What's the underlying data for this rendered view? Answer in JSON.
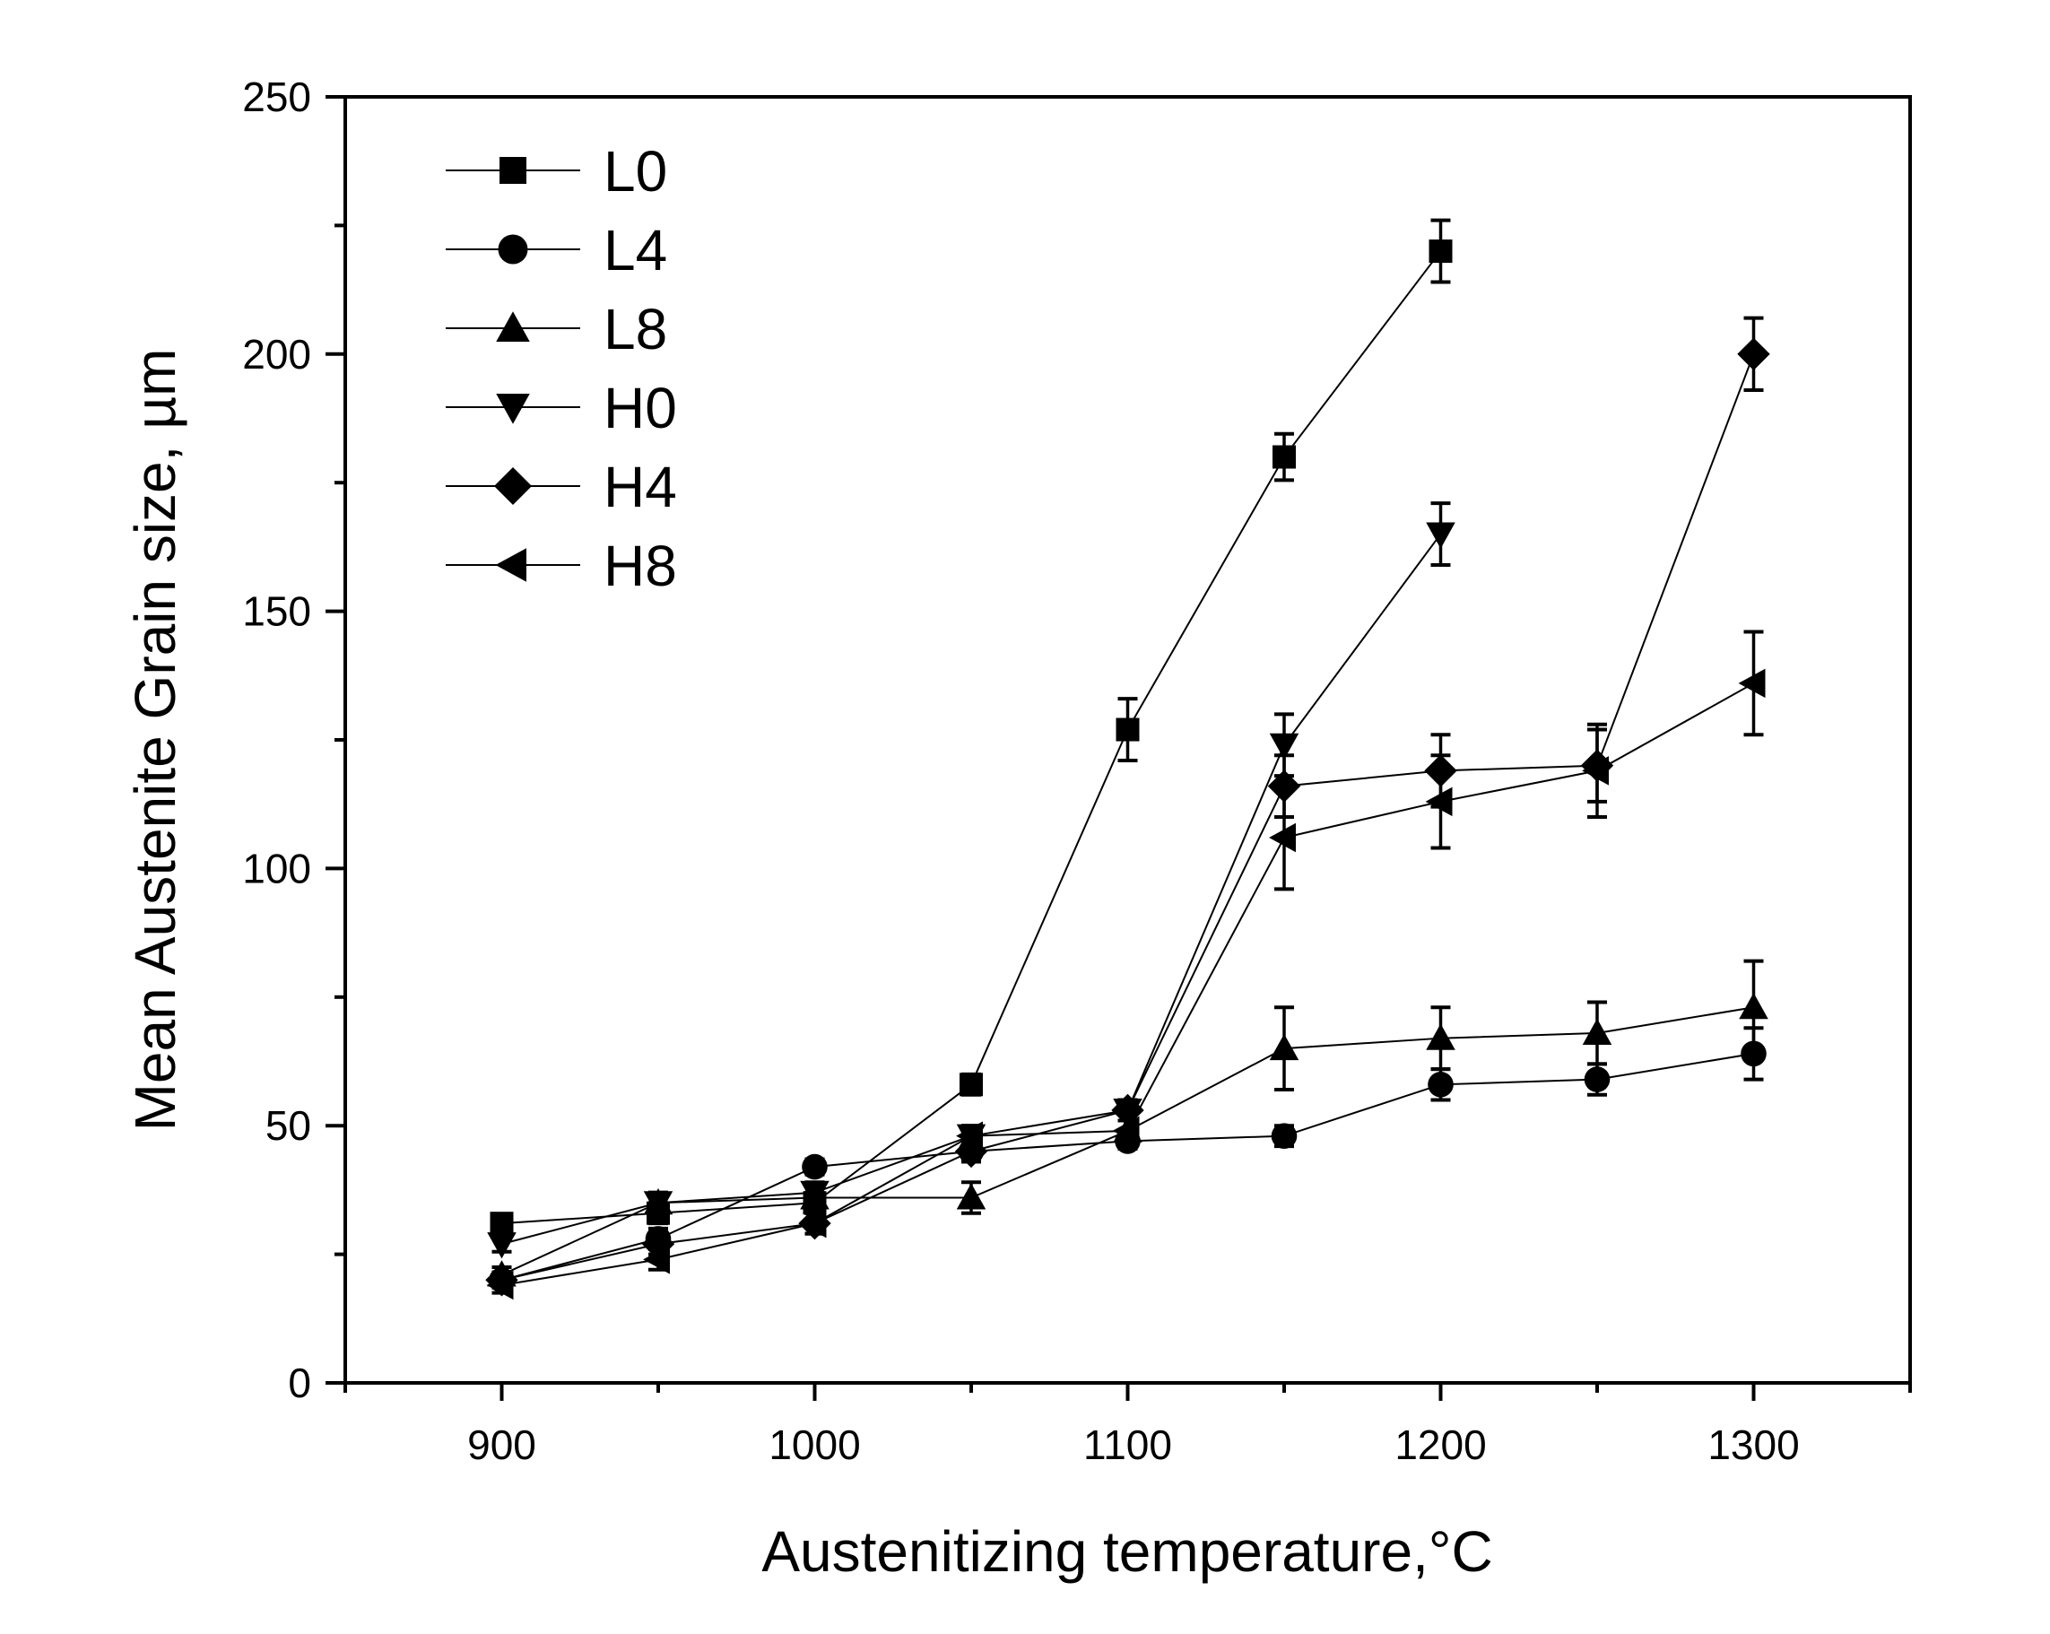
{
  "chart_data": {
    "type": "line",
    "title": "",
    "xlabel": "Austenitizing temperature,°C",
    "ylabel": "Mean Austenite Grain size, µm",
    "xlim": [
      850,
      1350
    ],
    "ylim": [
      0,
      250
    ],
    "x_ticks": [
      900,
      1000,
      1100,
      1200,
      1300
    ],
    "y_ticks": [
      0,
      50,
      100,
      150,
      200,
      250
    ],
    "x_tick_labels": [
      "900",
      "1000",
      "1100",
      "1200",
      "1300"
    ],
    "y_tick_labels": [
      "0",
      "50",
      "100",
      "150",
      "200",
      "250"
    ],
    "legend_position": "top-left",
    "series": [
      {
        "name": "L0",
        "marker": "square",
        "x": [
          900,
          950,
          1000,
          1050,
          1100,
          1150,
          1200
        ],
        "y": [
          31,
          33,
          35,
          58,
          127,
          180,
          220
        ],
        "err": [
          1.5,
          2,
          2,
          2,
          6,
          4.5,
          6
        ]
      },
      {
        "name": "L4",
        "marker": "circle",
        "x": [
          900,
          950,
          1000,
          1050,
          1100,
          1150,
          1200,
          1250,
          1300
        ],
        "y": [
          20,
          28,
          42,
          45,
          47,
          48,
          58,
          59,
          64
        ],
        "err": [
          1.5,
          2,
          1.5,
          2,
          1.5,
          2,
          3,
          3,
          5
        ]
      },
      {
        "name": "L8",
        "marker": "triangle-up",
        "x": [
          900,
          950,
          1000,
          1050,
          1100,
          1150,
          1200,
          1250,
          1300
        ],
        "y": [
          21,
          35,
          36,
          36,
          49,
          65,
          67,
          68,
          73
        ],
        "err": [
          1.5,
          2,
          2,
          3,
          2,
          8,
          6,
          6,
          9
        ]
      },
      {
        "name": "H0",
        "marker": "triangle-down",
        "x": [
          900,
          950,
          1000,
          1050,
          1100,
          1150,
          1200
        ],
        "y": [
          27,
          35,
          37,
          48,
          53,
          124,
          165
        ],
        "err": [
          1.5,
          2,
          2,
          2,
          2,
          6,
          6
        ]
      },
      {
        "name": "H4",
        "marker": "diamond",
        "x": [
          900,
          950,
          1000,
          1050,
          1100,
          1150,
          1200,
          1250,
          1300
        ],
        "y": [
          20,
          27,
          31,
          45,
          53,
          116,
          119,
          120,
          200
        ],
        "err": [
          1.5,
          2,
          2,
          2,
          2,
          6,
          7,
          7,
          7
        ]
      },
      {
        "name": "H8",
        "marker": "triangle-left",
        "x": [
          900,
          950,
          1000,
          1050,
          1100,
          1150,
          1200,
          1250,
          1300
        ],
        "y": [
          19,
          24,
          31,
          48,
          49,
          106,
          113,
          119,
          136
        ],
        "err": [
          1.5,
          2,
          2,
          2,
          2,
          10,
          9,
          9,
          10
        ]
      }
    ]
  }
}
